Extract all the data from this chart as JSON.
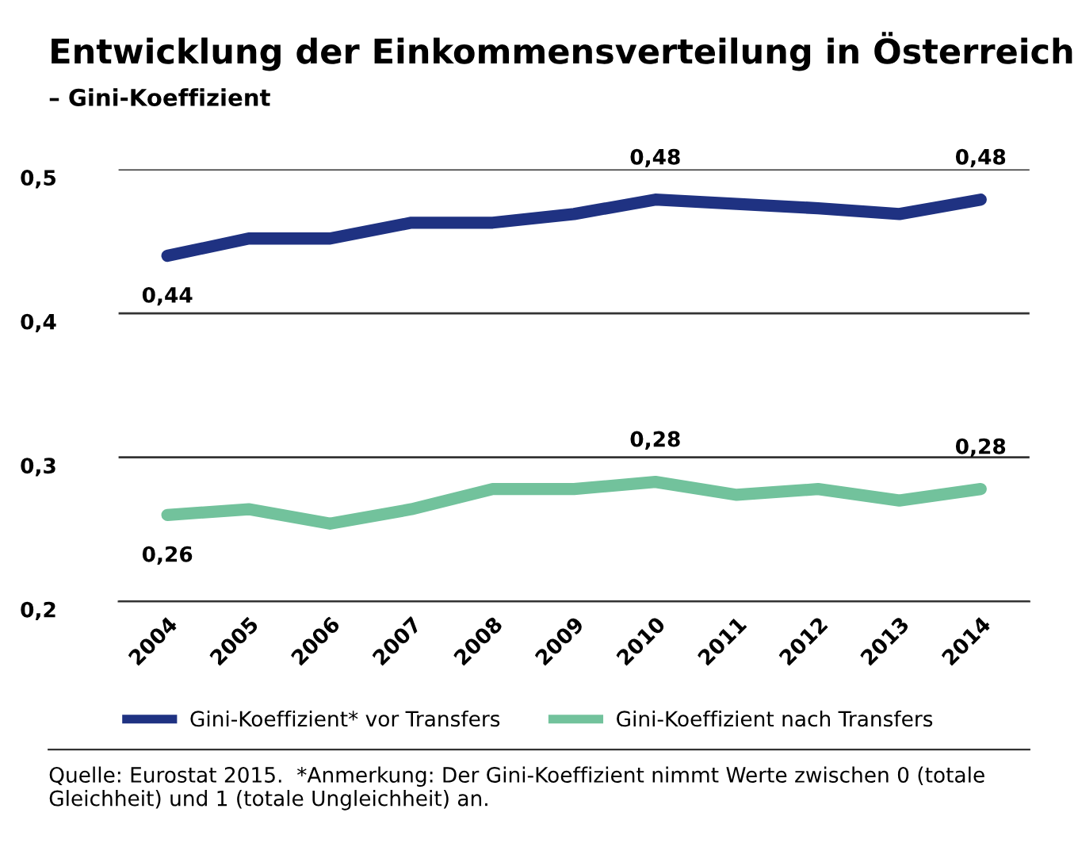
{
  "chart_data": {
    "type": "line",
    "title": "Entwicklung der Einkommensverteilung in Österreich",
    "subtitle": "– Gini-Koeffizient",
    "categories": [
      "2004",
      "2005",
      "2006",
      "2007",
      "2008",
      "2009",
      "2010",
      "2011",
      "2012",
      "2013",
      "2014"
    ],
    "series": [
      {
        "name": "Gini-Koeffizient* vor Transfers",
        "color": "#1f3282",
        "values": [
          0.44,
          0.452,
          0.452,
          0.463,
          0.463,
          0.469,
          0.479,
          0.476,
          0.473,
          0.469,
          0.479
        ],
        "value_labels": [
          "0,44",
          null,
          null,
          null,
          null,
          null,
          "0,48",
          null,
          null,
          null,
          "0,48"
        ]
      },
      {
        "name": "Gini-Koeffizient nach Transfers",
        "color": "#72c29c",
        "values": [
          0.26,
          0.264,
          0.254,
          0.264,
          0.278,
          0.278,
          0.283,
          0.274,
          0.278,
          0.27,
          0.278
        ],
        "value_labels": [
          "0,26",
          null,
          null,
          null,
          null,
          null,
          "0,28",
          null,
          null,
          null,
          "0,28"
        ]
      }
    ],
    "ylim": [
      0.2,
      0.5
    ],
    "yticks": [
      {
        "value": 0.2,
        "label": "0,2"
      },
      {
        "value": 0.3,
        "label": "0,3"
      },
      {
        "value": 0.4,
        "label": "0,4"
      },
      {
        "value": 0.5,
        "label": "0,5"
      }
    ],
    "grid": "y",
    "legend": "bottom",
    "marker": "none",
    "line_style": "solid",
    "annotations": [
      "Quelle: Eurostat 2015.  *Anmerkung: Der Gini-Koeffizient nimmt Werte zwischen 0 (totale Gleichheit) und 1 (totale Ungleichheit) an."
    ]
  }
}
